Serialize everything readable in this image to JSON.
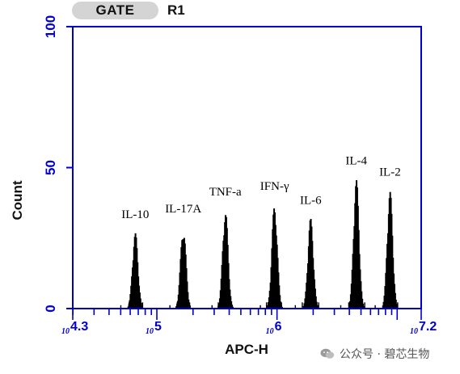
{
  "gate": {
    "label": "GATE",
    "value": "R1"
  },
  "watermark": {
    "text": "公众号 · 碧芯生物",
    "icon": "wechat-icon"
  },
  "colors": {
    "axis": "#0000cc",
    "bars": "#000000",
    "gate_pill": "#d4d4d4"
  },
  "chart_data": {
    "type": "histogram",
    "xlabel": "APC-H",
    "ylabel": "Count",
    "xscale": "log",
    "xlim_log10": [
      4.3,
      7.2
    ],
    "ylim": [
      0,
      100
    ],
    "y_ticks": [
      0,
      50,
      100
    ],
    "x_tick_labels": [
      {
        "pos": 4.3,
        "base": "10",
        "exp": "4.3"
      },
      {
        "pos": 5.0,
        "base": "10",
        "exp": "5"
      },
      {
        "pos": 6.0,
        "base": "10",
        "exp": "6"
      },
      {
        "pos": 7.2,
        "base": "10",
        "exp": "7.2"
      }
    ],
    "peaks": [
      {
        "name": "IL-10",
        "center_log10": 4.82,
        "max_count": 27
      },
      {
        "name": "IL-17A",
        "center_log10": 5.22,
        "max_count": 29
      },
      {
        "name": "TNF-a",
        "center_log10": 5.57,
        "max_count": 35
      },
      {
        "name": "IFN-γ",
        "center_log10": 5.98,
        "max_count": 37
      },
      {
        "name": "IL-6",
        "center_log10": 6.28,
        "max_count": 32
      },
      {
        "name": "IL-4",
        "center_log10": 6.66,
        "max_count": 46
      },
      {
        "name": "IL-2",
        "center_log10": 6.94,
        "max_count": 42
      }
    ]
  }
}
